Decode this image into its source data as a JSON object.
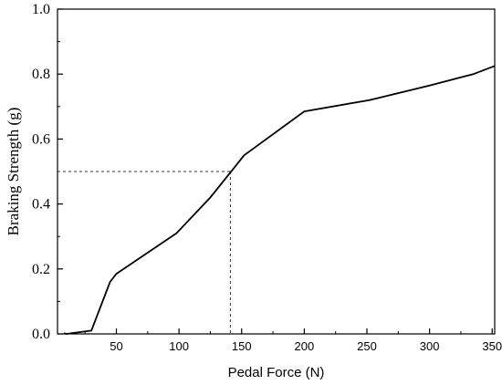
{
  "chart_data": {
    "type": "line",
    "title": "",
    "xlabel": "Pedal Force (N)",
    "ylabel": "Braking Strength (g)",
    "xlim": [
      3,
      352
    ],
    "ylim": [
      0,
      1.0
    ],
    "xticks": [
      50,
      100,
      150,
      200,
      250,
      300,
      350
    ],
    "yticks": [
      0.0,
      0.2,
      0.4,
      0.6,
      0.8,
      1.0
    ],
    "ytick_labels": [
      "0.0",
      "0.2",
      "0.4",
      "0.6",
      "0.8",
      "1.0"
    ],
    "grid": false,
    "legend": "none",
    "series": [
      {
        "x": [
          8,
          10,
          30,
          45,
          50,
          98,
          125,
          152,
          200,
          252,
          300,
          335,
          352
        ],
        "y": [
          0.002,
          0.0,
          0.01,
          0.16,
          0.185,
          0.31,
          0.42,
          0.55,
          0.685,
          0.72,
          0.765,
          0.8,
          0.825
        ],
        "color": "#000000"
      }
    ],
    "reference_lines": {
      "x": 141,
      "y": 0.5,
      "style": "dashed"
    }
  }
}
